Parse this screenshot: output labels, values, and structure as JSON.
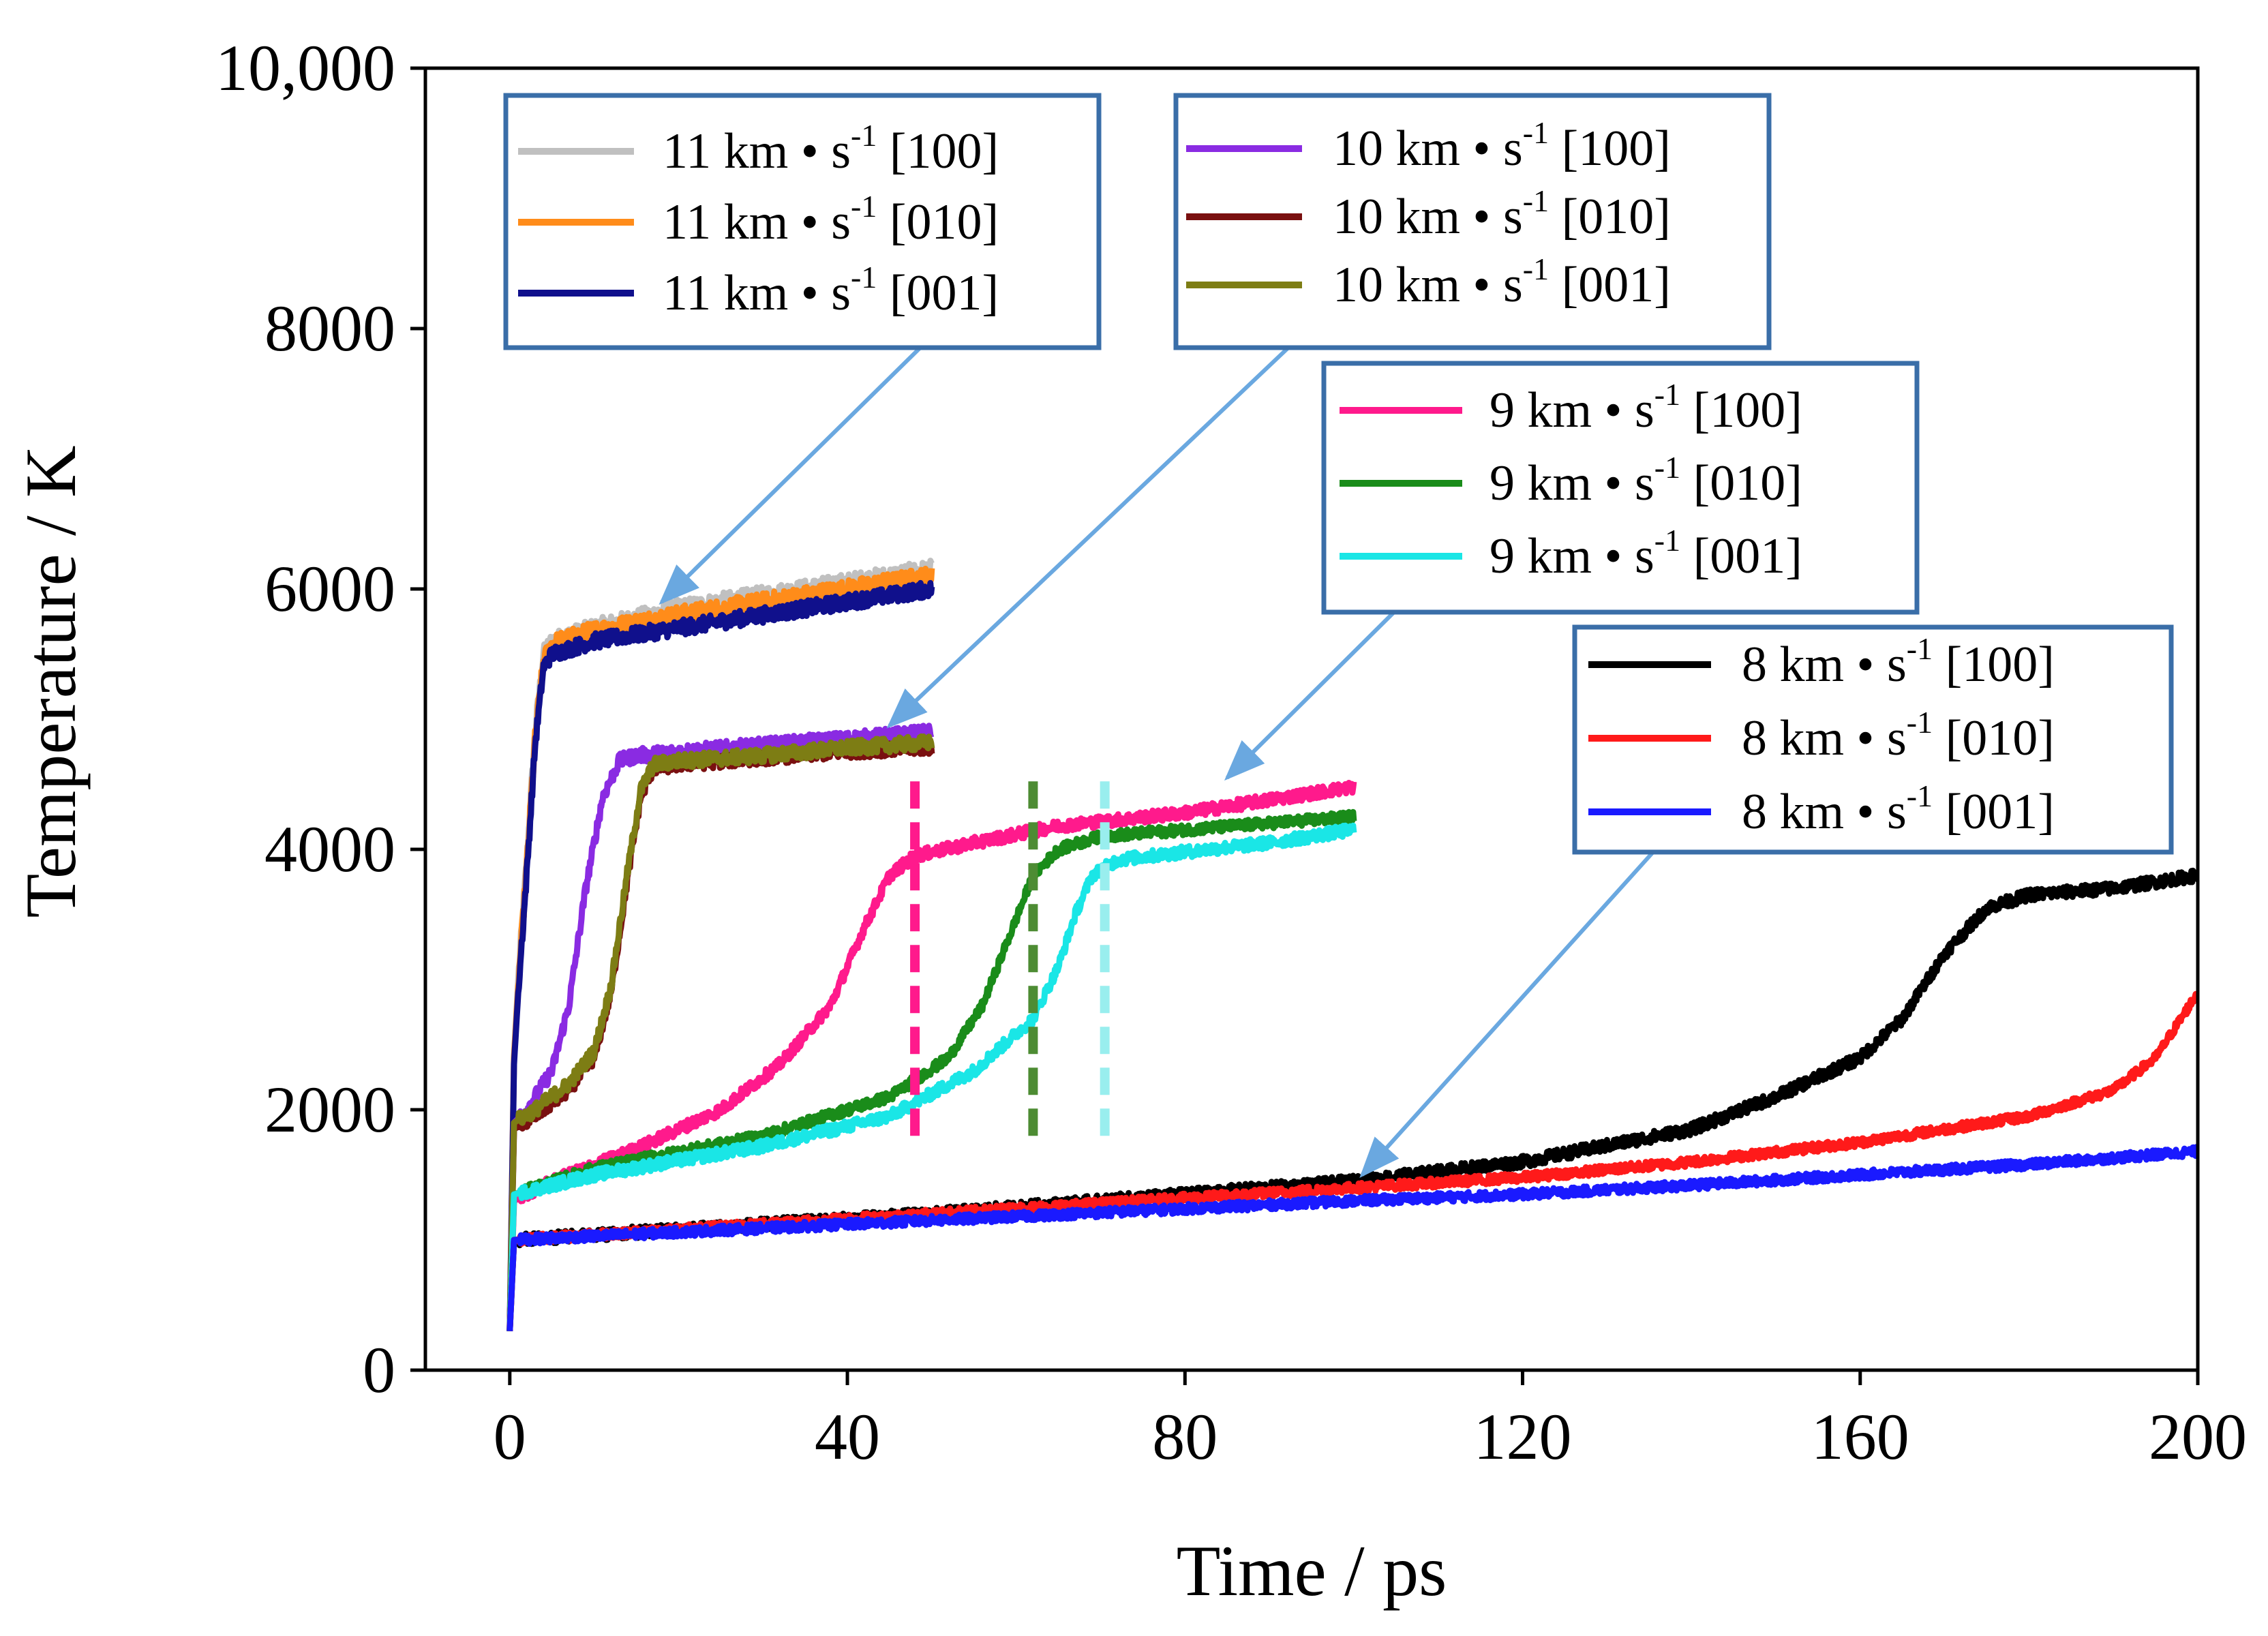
{
  "chart_data": {
    "type": "line",
    "xlabel": "Time / ps",
    "ylabel": "Temperature / K",
    "xlim": [
      -10,
      200
    ],
    "ylim": [
      0,
      10000
    ],
    "xticks": [
      0,
      40,
      80,
      120,
      160,
      200
    ],
    "xtick_labels": [
      "0",
      "40",
      "80",
      "120",
      "160",
      "200"
    ],
    "yticks": [
      0,
      2000,
      4000,
      6000,
      8000,
      10000
    ],
    "ytick_labels": [
      "0",
      "2000",
      "4000",
      "6000",
      "8000",
      "10,000"
    ],
    "grid": false,
    "unit_text": "km • s",
    "unit_exponent": "-1",
    "legend_groups": [
      {
        "entries": [
          {
            "speed": "11",
            "dir": "[100]",
            "color": "#c0c0c0"
          },
          {
            "speed": "11",
            "dir": "[010]",
            "color": "#ff8c1a"
          },
          {
            "speed": "11",
            "dir": "[001]",
            "color": "#10108c"
          }
        ]
      },
      {
        "entries": [
          {
            "speed": "10",
            "dir": "[100]",
            "color": "#8a2be2"
          },
          {
            "speed": "10",
            "dir": "[010]",
            "color": "#7a1010"
          },
          {
            "speed": "10",
            "dir": "[001]",
            "color": "#7d7d14"
          }
        ]
      },
      {
        "entries": [
          {
            "speed": "9",
            "dir": "[100]",
            "color": "#ff1a8c"
          },
          {
            "speed": "9",
            "dir": "[010]",
            "color": "#1a8c1a"
          },
          {
            "speed": "9",
            "dir": "[001]",
            "color": "#1ae6e6"
          }
        ]
      },
      {
        "entries": [
          {
            "speed": "8",
            "dir": "[100]",
            "color": "#000000"
          },
          {
            "speed": "8",
            "dir": "[010]",
            "color": "#ff1a1a"
          },
          {
            "speed": "8",
            "dir": "[001]",
            "color": "#1a1aff"
          }
        ]
      }
    ],
    "series": [
      {
        "name": "11 km•s-1 [100]",
        "color": "#c0c0c0",
        "noise": 70,
        "points": [
          [
            0,
            300
          ],
          [
            0.5,
            2400
          ],
          [
            1,
            3000
          ],
          [
            2,
            3900
          ],
          [
            3,
            4900
          ],
          [
            4,
            5500
          ],
          [
            5,
            5600
          ],
          [
            10,
            5700
          ],
          [
            20,
            5850
          ],
          [
            30,
            5950
          ],
          [
            40,
            6050
          ],
          [
            50,
            6150
          ]
        ]
      },
      {
        "name": "11 km•s-1 [010]",
        "color": "#ff8c1a",
        "noise": 70,
        "points": [
          [
            0,
            300
          ],
          [
            0.5,
            2400
          ],
          [
            1,
            2950
          ],
          [
            2,
            3850
          ],
          [
            3,
            4850
          ],
          [
            4,
            5450
          ],
          [
            5,
            5580
          ],
          [
            10,
            5680
          ],
          [
            20,
            5800
          ],
          [
            30,
            5900
          ],
          [
            40,
            6000
          ],
          [
            50,
            6100
          ]
        ]
      },
      {
        "name": "11 km•s-1 [001]",
        "color": "#10108c",
        "noise": 60,
        "points": [
          [
            0,
            300
          ],
          [
            0.5,
            2350
          ],
          [
            1,
            2900
          ],
          [
            2,
            3800
          ],
          [
            3,
            4800
          ],
          [
            4,
            5400
          ],
          [
            5,
            5500
          ],
          [
            10,
            5600
          ],
          [
            20,
            5700
          ],
          [
            30,
            5800
          ],
          [
            40,
            5900
          ],
          [
            50,
            6000
          ]
        ]
      },
      {
        "name": "10 km•s-1 [100]",
        "color": "#8a2be2",
        "noise": 55,
        "points": [
          [
            0,
            300
          ],
          [
            0.5,
            1900
          ],
          [
            2,
            2000
          ],
          [
            5,
            2300
          ],
          [
            7,
            2800
          ],
          [
            9,
            3700
          ],
          [
            11,
            4400
          ],
          [
            13,
            4680
          ],
          [
            15,
            4720
          ],
          [
            20,
            4750
          ],
          [
            30,
            4800
          ],
          [
            40,
            4850
          ],
          [
            50,
            4900
          ]
        ]
      },
      {
        "name": "10 km•s-1 [010]",
        "color": "#7a1010",
        "noise": 50,
        "points": [
          [
            0,
            300
          ],
          [
            0.5,
            1850
          ],
          [
            3,
            1950
          ],
          [
            7,
            2150
          ],
          [
            10,
            2400
          ],
          [
            12,
            2900
          ],
          [
            14,
            3800
          ],
          [
            15.5,
            4400
          ],
          [
            17,
            4620
          ],
          [
            20,
            4650
          ],
          [
            30,
            4700
          ],
          [
            40,
            4750
          ],
          [
            50,
            4780
          ]
        ]
      },
      {
        "name": "10 km•s-1 [001]",
        "color": "#7d7d14",
        "noise": 55,
        "points": [
          [
            0,
            300
          ],
          [
            0.5,
            1900
          ],
          [
            3,
            2000
          ],
          [
            7,
            2200
          ],
          [
            10,
            2450
          ],
          [
            12,
            2950
          ],
          [
            14,
            3850
          ],
          [
            15.5,
            4450
          ],
          [
            17,
            4650
          ],
          [
            20,
            4680
          ],
          [
            30,
            4720
          ],
          [
            40,
            4780
          ],
          [
            50,
            4820
          ]
        ]
      },
      {
        "name": "9 km•s-1 [100]",
        "color": "#ff1a8c",
        "noise": 45,
        "points": [
          [
            0,
            300
          ],
          [
            0.5,
            1300
          ],
          [
            5,
            1450
          ],
          [
            15,
            1700
          ],
          [
            25,
            2000
          ],
          [
            32,
            2350
          ],
          [
            38,
            2800
          ],
          [
            42,
            3400
          ],
          [
            45,
            3800
          ],
          [
            48,
            3950
          ],
          [
            55,
            4050
          ],
          [
            65,
            4180
          ],
          [
            80,
            4280
          ],
          [
            100,
            4480
          ]
        ]
      },
      {
        "name": "9 km•s-1 [010]",
        "color": "#1a8c1a",
        "noise": 40,
        "points": [
          [
            0,
            300
          ],
          [
            0.5,
            1350
          ],
          [
            10,
            1550
          ],
          [
            30,
            1800
          ],
          [
            45,
            2100
          ],
          [
            52,
            2400
          ],
          [
            56,
            2800
          ],
          [
            59,
            3300
          ],
          [
            62,
            3800
          ],
          [
            65,
            4000
          ],
          [
            70,
            4100
          ],
          [
            80,
            4150
          ],
          [
            90,
            4200
          ],
          [
            100,
            4250
          ]
        ]
      },
      {
        "name": "9 km•s-1 [001]",
        "color": "#1ae6e6",
        "noise": 45,
        "points": [
          [
            0,
            300
          ],
          [
            0.5,
            1350
          ],
          [
            10,
            1500
          ],
          [
            30,
            1720
          ],
          [
            45,
            1950
          ],
          [
            55,
            2300
          ],
          [
            62,
            2700
          ],
          [
            65,
            3100
          ],
          [
            67,
            3500
          ],
          [
            69,
            3800
          ],
          [
            72,
            3920
          ],
          [
            80,
            3980
          ],
          [
            90,
            4050
          ],
          [
            100,
            4150
          ]
        ]
      },
      {
        "name": "8 km•s-1 [100]",
        "color": "#000000",
        "noise": 45,
        "points": [
          [
            0,
            300
          ],
          [
            0.5,
            1000
          ],
          [
            20,
            1080
          ],
          [
            50,
            1200
          ],
          [
            80,
            1350
          ],
          [
            100,
            1450
          ],
          [
            120,
            1600
          ],
          [
            140,
            1850
          ],
          [
            150,
            2100
          ],
          [
            160,
            2400
          ],
          [
            165,
            2700
          ],
          [
            170,
            3200
          ],
          [
            175,
            3550
          ],
          [
            180,
            3650
          ],
          [
            190,
            3700
          ],
          [
            200,
            3800
          ]
        ]
      },
      {
        "name": "8 km•s-1 [010]",
        "color": "#ff1a1a",
        "noise": 35,
        "points": [
          [
            0,
            300
          ],
          [
            0.5,
            1000
          ],
          [
            20,
            1080
          ],
          [
            50,
            1200
          ],
          [
            80,
            1320
          ],
          [
            100,
            1400
          ],
          [
            120,
            1480
          ],
          [
            140,
            1600
          ],
          [
            160,
            1750
          ],
          [
            180,
            1950
          ],
          [
            190,
            2150
          ],
          [
            195,
            2400
          ],
          [
            200,
            2900
          ]
        ]
      },
      {
        "name": "8 km•s-1 [001]",
        "color": "#1a1aff",
        "noise": 35,
        "points": [
          [
            0,
            300
          ],
          [
            0.5,
            1000
          ],
          [
            20,
            1060
          ],
          [
            50,
            1150
          ],
          [
            80,
            1240
          ],
          [
            100,
            1300
          ],
          [
            120,
            1350
          ],
          [
            140,
            1420
          ],
          [
            160,
            1500
          ],
          [
            180,
            1580
          ],
          [
            200,
            1680
          ]
        ]
      }
    ],
    "markers": [
      {
        "x": 48,
        "y_from": 1800,
        "y_to": 4550,
        "color": "#ff1a8c"
      },
      {
        "x": 62,
        "y_from": 1800,
        "y_to": 4550,
        "color": "#4d8c33"
      },
      {
        "x": 70.5,
        "y_from": 1800,
        "y_to": 4550,
        "color": "#99eeee"
      }
    ],
    "arrows": [
      {
        "name": "arrow-11",
        "to": [
          18,
          5900
        ]
      },
      {
        "name": "arrow-10",
        "to": [
          45,
          4950
        ]
      },
      {
        "name": "arrow-9",
        "to": [
          85,
          4550
        ]
      },
      {
        "name": "arrow-8",
        "to": [
          101,
          1500
        ]
      }
    ]
  }
}
